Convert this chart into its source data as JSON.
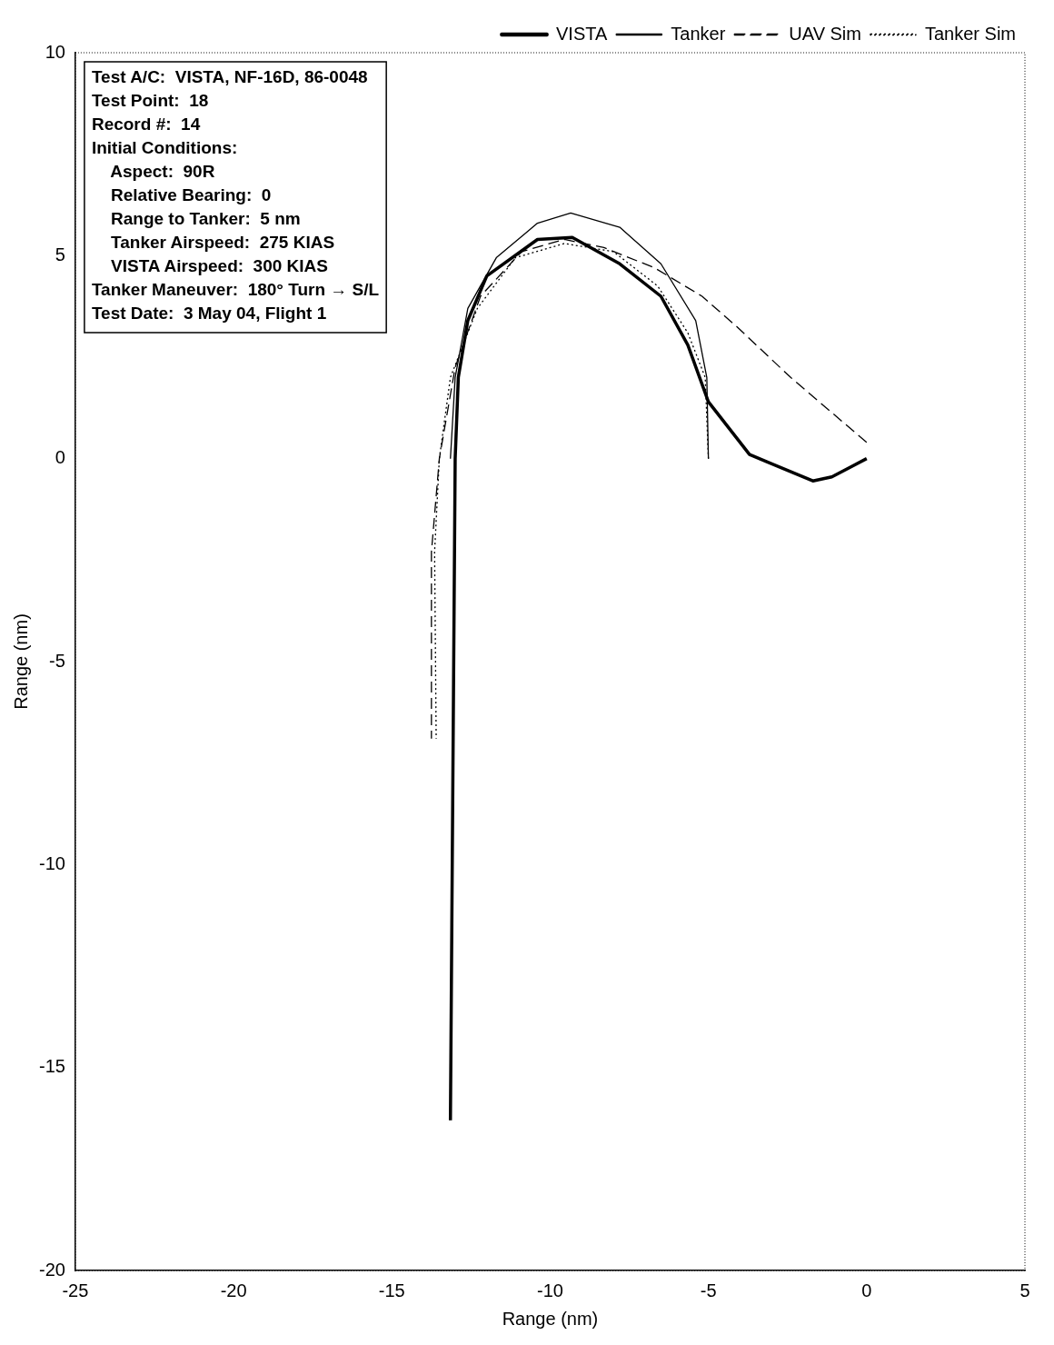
{
  "chart_data": {
    "type": "line",
    "xlabel": "Range (nm)",
    "ylabel": "Range (nm)",
    "xlim": [
      -25,
      5
    ],
    "ylim": [
      -20,
      10
    ],
    "xticks": [
      -25,
      -20,
      -15,
      -10,
      -5,
      0,
      5
    ],
    "yticks": [
      -20,
      -15,
      -10,
      -5,
      0,
      5,
      10
    ],
    "grid": false,
    "legend": "top right",
    "marker": "none",
    "annotations": [
      "Test A/C:  VISTA, NF-16D, 86-0048",
      "Test Point:  18",
      "Record #:  14",
      "Initial Conditions:",
      "    Aspect:  90R",
      "    Relative Bearing:  0",
      "    Range to Tanker:  5 nm",
      "    Tanker Airspeed:  275 KIAS",
      "    VISTA Airspeed:  300 KIAS",
      "Tanker Maneuver:  180° Turn → S/L",
      "Test Date:  3 May 04, Flight 1"
    ],
    "series": [
      {
        "name": "VISTA",
        "color": "#000000",
        "line_style": "solid",
        "x": [
          0,
          -1.1,
          -1.7,
          -3.7,
          -5,
          -5.65,
          -6.5,
          -7.8,
          -9.3,
          -10.4,
          -12,
          -12.6,
          -12.9,
          -13,
          -13.15
        ],
        "values": [
          0,
          -0.45,
          -0.55,
          0.1,
          1.4,
          2.8,
          4,
          4.8,
          5.45,
          5.4,
          4.5,
          3.4,
          2,
          0,
          -16.3
        ]
      },
      {
        "name": "Tanker",
        "color": "#000000",
        "line_style": "solid",
        "x": [
          -5,
          -5.05,
          -5.4,
          -6.5,
          -7.8,
          -9.35,
          -10.4,
          -11.7,
          -12.6,
          -13,
          -13.15
        ],
        "values": [
          0,
          2,
          3.4,
          4.8,
          5.7,
          6.05,
          5.8,
          4.95,
          3.7,
          2,
          0
        ]
      },
      {
        "name": "UAV Sim",
        "color": "#000000",
        "line_style": "dashed",
        "x": [
          0,
          -2.4,
          -4.1,
          -5.2,
          -6.7,
          -8.3,
          -9.55,
          -10.9,
          -12.2,
          -13,
          -13.5,
          -13.75,
          -13.75
        ],
        "values": [
          0.4,
          2,
          3.25,
          4,
          4.7,
          5.2,
          5.4,
          5.1,
          4,
          2.25,
          0,
          -2.3,
          -6.9
        ]
      },
      {
        "name": "Tanker Sim",
        "color": "#000000",
        "line_style": "dotted",
        "x": [
          -5,
          -5.1,
          -5.65,
          -6.6,
          -8,
          -9.55,
          -11.1,
          -12.3,
          -13.15,
          -13.5,
          -13.65,
          -13.6
        ],
        "values": [
          0,
          2,
          3.1,
          4.25,
          5.1,
          5.3,
          4.95,
          3.7,
          2,
          0,
          -2.3,
          -6.9
        ]
      }
    ]
  }
}
